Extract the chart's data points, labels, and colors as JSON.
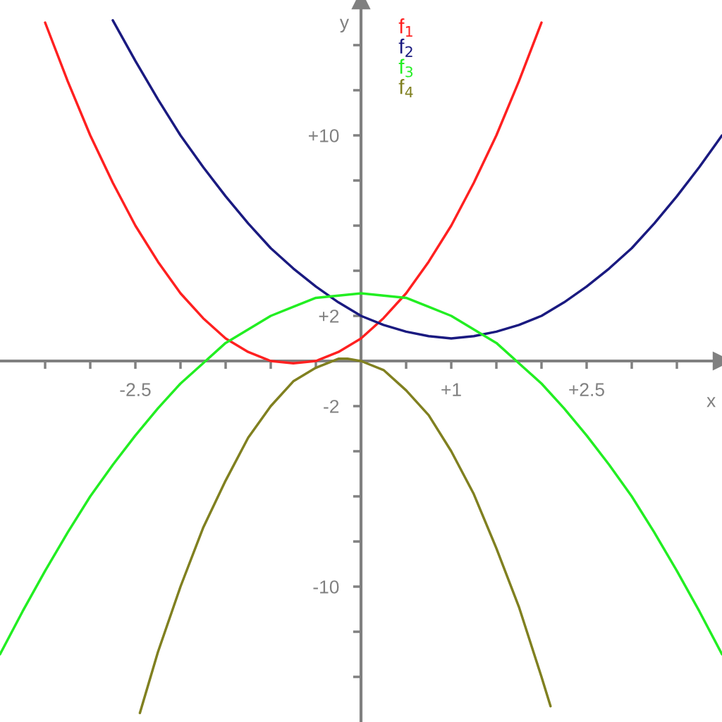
{
  "chart_data": {
    "type": "line",
    "xlabel": "x",
    "ylabel": "y",
    "xlim": [
      -4,
      4
    ],
    "ylim": [
      -16,
      16
    ],
    "xticks": [
      {
        "value": -3.5,
        "label": null
      },
      {
        "value": -3,
        "label": null
      },
      {
        "value": -2.5,
        "label": "-2.5"
      },
      {
        "value": -2,
        "label": null
      },
      {
        "value": -1.5,
        "label": null
      },
      {
        "value": -1,
        "label": null
      },
      {
        "value": -0.5,
        "label": null
      },
      {
        "value": 0.5,
        "label": null
      },
      {
        "value": 1,
        "label": "+1"
      },
      {
        "value": 1.5,
        "label": null
      },
      {
        "value": 2,
        "label": null
      },
      {
        "value": 2.5,
        "label": "+2.5"
      },
      {
        "value": 3,
        "label": null
      },
      {
        "value": 3.5,
        "label": null
      }
    ],
    "yticks": [
      {
        "value": -14,
        "label": null
      },
      {
        "value": -12,
        "label": null
      },
      {
        "value": -10,
        "label": "-10"
      },
      {
        "value": -8,
        "label": null
      },
      {
        "value": -6,
        "label": null
      },
      {
        "value": -4,
        "label": null
      },
      {
        "value": -2,
        "label": "-2"
      },
      {
        "value": 2,
        "label": "+2"
      },
      {
        "value": 4,
        "label": null
      },
      {
        "value": 6,
        "label": null
      },
      {
        "value": 8,
        "label": null
      },
      {
        "value": 10,
        "label": "+10"
      },
      {
        "value": 12,
        "label": null
      },
      {
        "value": 14,
        "label": null
      }
    ],
    "grid": false,
    "legend": "top",
    "marker": "none",
    "line_style": "solid",
    "series": [
      {
        "name": "f$_{1}$",
        "color": "#ff2020",
        "x": [
          -3.5,
          -3.25,
          -3,
          -2.75,
          -2.5,
          -2.25,
          -2,
          -1.75,
          -1.5,
          -1.25,
          -1,
          -0.75,
          -0.5,
          -0.25,
          0,
          0.25,
          0.5,
          0.75,
          1,
          1.25,
          1.5,
          1.75,
          2
        ],
        "values": [
          15,
          12.4,
          10,
          7.9,
          6,
          4.4,
          3,
          1.9,
          1,
          0.4,
          0,
          -0.1,
          0,
          0.4,
          1,
          1.9,
          3,
          4.4,
          6,
          7.9,
          10,
          12.4,
          15
        ]
      },
      {
        "name": "f$_{2}$",
        "color": "#1a1a80",
        "x": [
          -2.75,
          -2.5,
          -2.25,
          -2,
          -1.75,
          -1.5,
          -1.25,
          -1,
          -0.75,
          -0.5,
          -0.25,
          0,
          0.25,
          0.5,
          0.75,
          1,
          1.25,
          1.5,
          1.75,
          2,
          2.25,
          2.5,
          2.75,
          3,
          3.25,
          3.5,
          3.75,
          4
        ],
        "values": [
          15.1,
          13.3,
          11.6,
          10,
          8.6,
          7.3,
          6.1,
          5,
          4.1,
          3.3,
          2.6,
          2,
          1.6,
          1.3,
          1.1,
          1,
          1.1,
          1.3,
          1.6,
          2,
          2.6,
          3.3,
          4.1,
          5,
          6.1,
          7.3,
          8.6,
          10
        ]
      },
      {
        "name": "f$_{3}$",
        "color": "#22ee22",
        "x": [
          -4,
          -3.75,
          -3.5,
          -3.25,
          -3,
          -2.75,
          -2.5,
          -2.25,
          -2,
          -1.75,
          -1.5,
          -1.25,
          -1,
          -0.75,
          -0.5,
          -0.25,
          0,
          0.25,
          0.5,
          0.75,
          1,
          1.25,
          1.5,
          1.75,
          2,
          2.25,
          2.5,
          2.75,
          3,
          3.25,
          3.5,
          3.75,
          4
        ],
        "values": [
          -13,
          -11.1,
          -9.3,
          -7.6,
          -6,
          -4.6,
          -3.3,
          -2.1,
          -1,
          -0.1,
          0.8,
          1.4,
          2,
          2.4,
          2.8,
          2.9,
          3,
          2.9,
          2.8,
          2.4,
          2,
          1.4,
          0.8,
          -0.1,
          -1,
          -2.1,
          -3.3,
          -4.6,
          -6,
          -7.6,
          -9.3,
          -11.1,
          -13
        ]
      },
      {
        "name": "f$_{4}$",
        "color": "#808020",
        "x": [
          -2.45,
          -2.25,
          -2,
          -1.75,
          -1.5,
          -1.25,
          -1,
          -0.75,
          -0.5,
          -0.25,
          -0.15,
          0,
          0.25,
          0.5,
          0.75,
          1,
          1.25,
          1.5,
          1.75,
          2,
          2.1
        ],
        "values": [
          -15.6,
          -12.9,
          -10,
          -7.4,
          -5.3,
          -3.4,
          -2,
          -0.9,
          -0.3,
          0.1,
          0.1,
          0,
          -0.4,
          -1.3,
          -2.4,
          -4,
          -5.9,
          -8.3,
          -10.9,
          -14,
          -15.3
        ]
      }
    ]
  }
}
